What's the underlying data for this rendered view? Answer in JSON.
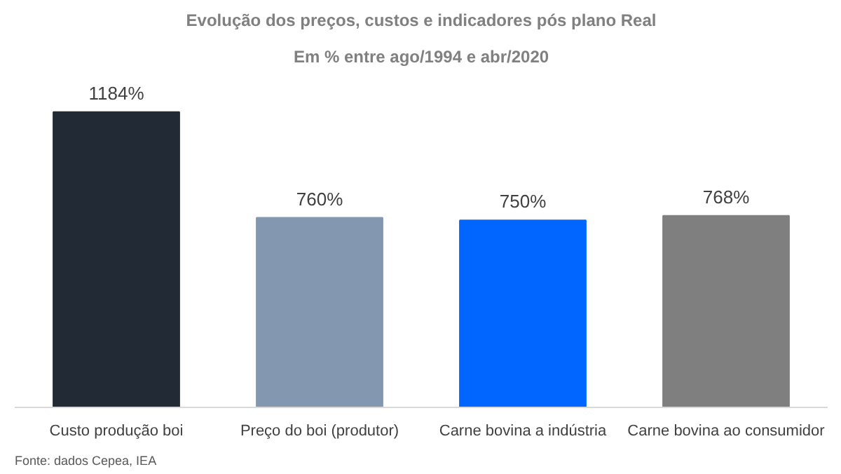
{
  "chart_data": {
    "type": "bar",
    "title": "Evolução dos preços, custos e indicadores pós plano Real",
    "subtitle": "Em % entre ago/1994 e abr/2020",
    "categories": [
      "Custo produção boi",
      "Preço do boi (produtor)",
      "Carne bovina a indústria",
      "Carne bovina ao consumidor"
    ],
    "values": [
      1184,
      760,
      750,
      768
    ],
    "colors": [
      "#222a36",
      "#8497b0",
      "#0066ff",
      "#7f7f7f"
    ],
    "value_labels": [
      "1184%",
      "760%",
      "750%",
      "768%"
    ],
    "annotations": [
      "Fonte: dados Cepea, IEA"
    ]
  }
}
